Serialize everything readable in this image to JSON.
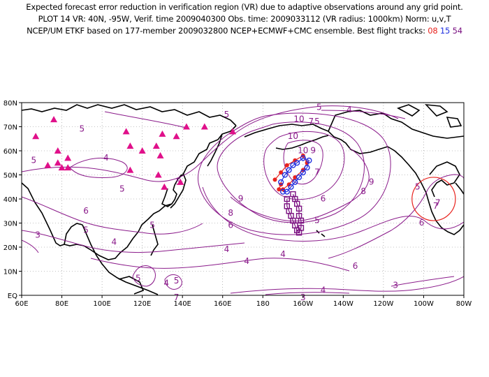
{
  "header": {
    "line1": "Expected forecast error reduction in verification region (VR) due to adaptive observations around any grid point.",
    "line2": "PLOT 14 VR: 40N, -95W, Verif. time 2009040300 Obs. time: 2009033112 (VR radius: 1000km) Norm: u,v,T",
    "line3_text": "NCEP/UM ETKF based on 177-member 2009032800 NCEP+ECMWF+CMC ensemble. Best flight tracks:",
    "track_ids": [
      "08",
      "15",
      "54"
    ]
  },
  "colors": {
    "contour": "#8a1a8a",
    "track08": "#e8231e",
    "track15": "#2030e0",
    "track54": "#7a1080",
    "vr_circle": "#e8231e",
    "raob": "#e0108a",
    "grid": "#888888"
  },
  "chart_data": {
    "type": "map-contour",
    "projection": "cylindrical",
    "lon_range": [
      60,
      280
    ],
    "lat_range": [
      0,
      80
    ],
    "x_ticks": [
      "60E",
      "80E",
      "100E",
      "120E",
      "140E",
      "160E",
      "180",
      "160W",
      "140W",
      "120W",
      "100W",
      "80W"
    ],
    "y_ticks": [
      "EQ",
      "10N",
      "20N",
      "30N",
      "40N",
      "50N",
      "60N",
      "70N",
      "80N"
    ],
    "grid": "dotted",
    "verification_region": {
      "lon": -95,
      "lat": 40,
      "radius_km": 1000,
      "label": "7"
    },
    "contour_labels": [
      {
        "t": "5",
        "lon": 162,
        "lat": 75
      },
      {
        "t": "4",
        "lon": 102,
        "lat": 57
      },
      {
        "t": "5",
        "lon": 66,
        "lat": 56
      },
      {
        "t": "5",
        "lon": 90,
        "lat": 69
      },
      {
        "t": "5",
        "lon": 138,
        "lat": 47
      },
      {
        "t": "5",
        "lon": 110,
        "lat": 44
      },
      {
        "t": "6",
        "lon": 92,
        "lat": 35
      },
      {
        "t": "5",
        "lon": 92,
        "lat": 27
      },
      {
        "t": "3",
        "lon": 68,
        "lat": 25
      },
      {
        "t": "4",
        "lon": 106,
        "lat": 22
      },
      {
        "t": "5",
        "lon": 125,
        "lat": 29
      },
      {
        "t": "5",
        "lon": 118,
        "lat": 7
      },
      {
        "t": "4",
        "lon": 132,
        "lat": 5
      },
      {
        "t": "5",
        "lon": 137,
        "lat": 6
      },
      {
        "t": "4",
        "lon": 162,
        "lat": 19
      },
      {
        "t": "6",
        "lon": 164,
        "lat": 29
      },
      {
        "t": "8",
        "lon": 164,
        "lat": 34
      },
      {
        "t": "9",
        "lon": 169,
        "lat": 40
      },
      {
        "t": "10",
        "lon": 198,
        "lat": 73
      },
      {
        "t": "10",
        "lon": 195,
        "lat": 66
      },
      {
        "t": "4",
        "lon": 223,
        "lat": 77
      },
      {
        "t": "5",
        "lon": 208,
        "lat": 78
      },
      {
        "t": "5",
        "lon": 207,
        "lat": 72
      },
      {
        "t": "7",
        "lon": 204,
        "lat": 72
      },
      {
        "t": "9",
        "lon": 205,
        "lat": 60
      },
      {
        "t": "10",
        "lon": 200,
        "lat": 60
      },
      {
        "t": "7",
        "lon": 207,
        "lat": 51
      },
      {
        "t": "6",
        "lon": 210,
        "lat": 40
      },
      {
        "t": "5",
        "lon": 207,
        "lat": 31
      },
      {
        "t": "8",
        "lon": 230,
        "lat": 43
      },
      {
        "t": "9",
        "lon": 234,
        "lat": 47
      },
      {
        "t": "5",
        "lon": 257,
        "lat": 45
      },
      {
        "t": "6",
        "lon": 259,
        "lat": 30
      },
      {
        "t": "6",
        "lon": 226,
        "lat": 12
      },
      {
        "t": "4",
        "lon": 210,
        "lat": 2
      },
      {
        "t": "3",
        "lon": 246,
        "lat": 4
      },
      {
        "t": "3",
        "lon": 200,
        "lat": -1
      },
      {
        "t": "4",
        "lon": 190,
        "lat": 17
      },
      {
        "t": "7",
        "lon": 266,
        "lat": 37
      },
      {
        "t": "7",
        "lon": 137,
        "lat": -1
      },
      {
        "t": "4",
        "lon": 172,
        "lat": 14
      }
    ],
    "raob_sites": [
      [
        67,
        66
      ],
      [
        76,
        73
      ],
      [
        78,
        60
      ],
      [
        73,
        54
      ],
      [
        78,
        55
      ],
      [
        83,
        57
      ],
      [
        80,
        53
      ],
      [
        83,
        53
      ],
      [
        112,
        68
      ],
      [
        114,
        62
      ],
      [
        120,
        60
      ],
      [
        127,
        62
      ],
      [
        129,
        58
      ],
      [
        130,
        67
      ],
      [
        142,
        70
      ],
      [
        151,
        70
      ],
      [
        165,
        68
      ],
      [
        137,
        66
      ],
      [
        128,
        50
      ],
      [
        131,
        45
      ],
      [
        139,
        47
      ],
      [
        114,
        52
      ]
    ],
    "tracks": [
      {
        "id": "08",
        "marker": "filled-circle",
        "points": [
          [
            186,
            48
          ],
          [
            189,
            51
          ],
          [
            192,
            54
          ],
          [
            196,
            56
          ],
          [
            200,
            58
          ],
          [
            202,
            55
          ],
          [
            200,
            52
          ],
          [
            196,
            49
          ],
          [
            193,
            46
          ],
          [
            190,
            44
          ],
          [
            188,
            44
          ],
          [
            189,
            46
          ]
        ]
      },
      {
        "id": "15",
        "marker": "open-circle",
        "points": [
          [
            189,
            47
          ],
          [
            191,
            50
          ],
          [
            193,
            52
          ],
          [
            195,
            54
          ],
          [
            197,
            55
          ],
          [
            200,
            57
          ],
          [
            203,
            56
          ],
          [
            202,
            53
          ],
          [
            200,
            51
          ],
          [
            198,
            49
          ],
          [
            196,
            47
          ],
          [
            194,
            45
          ],
          [
            192,
            43
          ],
          [
            190,
            43
          ]
        ]
      },
      {
        "id": "54",
        "marker": "open-square",
        "points": [
          [
            192,
            40
          ],
          [
            192,
            37
          ],
          [
            193,
            35
          ],
          [
            194,
            33
          ],
          [
            195,
            31
          ],
          [
            196,
            29
          ],
          [
            197,
            27
          ],
          [
            198,
            26
          ],
          [
            199,
            28
          ],
          [
            199,
            31
          ],
          [
            198,
            33
          ],
          [
            198,
            36
          ],
          [
            197,
            38
          ],
          [
            196,
            40
          ],
          [
            195,
            42
          ]
        ]
      }
    ]
  }
}
